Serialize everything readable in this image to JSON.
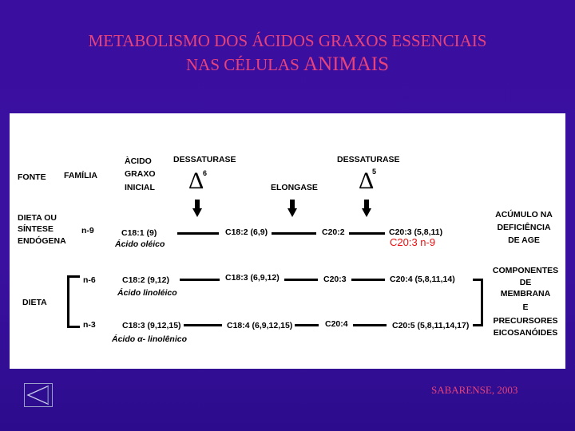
{
  "title": {
    "line1": "METABOLISMO DOS ÁCIDOS GRAXOS ESSENCIAIS",
    "line2_a": "NAS CÉLULAS",
    "line2_b": "ANIMAIS"
  },
  "headers": {
    "fonte": "FONTE",
    "familia": "FAMÍLIA",
    "acido_inicial": [
      "ÀCIDO",
      "GRAXO",
      "INICIAL"
    ],
    "dessaturase_1": "DESSATURASE",
    "dessaturase_1_sup": "6",
    "elongase": "ELONGASE",
    "dessaturase_2": "DESSATURASE",
    "dessaturase_2_sup": "5"
  },
  "sources": {
    "endogena": [
      "DIETA OU",
      "SÍNTESE",
      "ENDÓGENA"
    ],
    "dieta": "DIETA"
  },
  "rows": [
    {
      "family": "n-9",
      "initial": "C18:1 (9)",
      "initial_name": "Ácido oléico",
      "step1": "C18:2 (6,9)",
      "step2": "C20:2",
      "final": "C20:3 (5,8,11)"
    },
    {
      "family": "n-6",
      "initial": "C18:2 (9,12)",
      "initial_name": "Ácido linoléico",
      "step1": "C18:3 (6,9,12)",
      "step2": "C20:3",
      "final": "C20:4 (5,8,11,14)"
    },
    {
      "family": "n-3",
      "initial": "C18:3 (9,12,15)",
      "initial_name": "Ácido α- linolênico",
      "step1": "C18:4 (6,9,12,15)",
      "step2": "C20:4",
      "final": "C20:5 (5,8,11,14,17)"
    }
  ],
  "annotation": "C20:3 n-9",
  "outcomes": {
    "deficiency": [
      "ACÚMULO NA",
      "DEFICIÊNCIA",
      "DE AGE"
    ],
    "components": [
      "COMPONENTES",
      "DE",
      "MEMBRANA",
      "E",
      "PRECURSORES",
      "EICOSANÓIDES"
    ]
  },
  "credit": "SABARENSE, 2003",
  "colors": {
    "background": "#3a0fa0",
    "title": "#e8427a",
    "annotation": "#e81010"
  }
}
